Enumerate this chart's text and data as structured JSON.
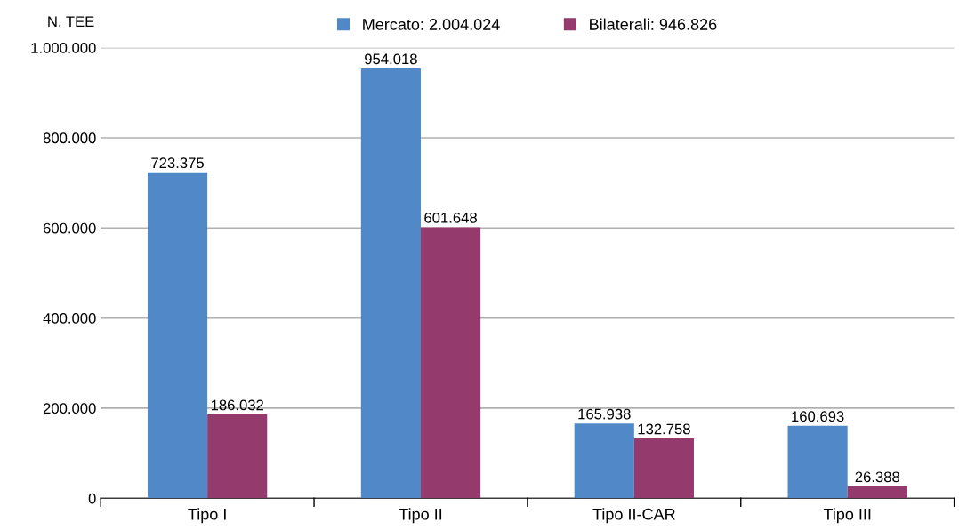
{
  "chart_data": {
    "type": "bar",
    "ylabel": "N. TEE",
    "categories": [
      "Tipo I",
      "Tipo II",
      "Tipo II-CAR",
      "Tipo III"
    ],
    "series": [
      {
        "name": "Mercato: 2.004.024",
        "color": "#5088c8",
        "values": [
          723375,
          954018,
          165938,
          160693
        ],
        "value_labels": [
          "723.375",
          "954.018",
          "165.938",
          "160.693"
        ]
      },
      {
        "name": "Bilaterali: 946.826",
        "color": "#953a6c",
        "values": [
          186032,
          601648,
          132758,
          26388
        ],
        "value_labels": [
          "186.032",
          "601.648",
          "132.758",
          "26.388"
        ]
      }
    ],
    "ylim": [
      0,
      1000000
    ],
    "yticks": [
      {
        "value": 0,
        "label": "0"
      },
      {
        "value": 200000,
        "label": "200.000"
      },
      {
        "value": 400000,
        "label": "400.000"
      },
      {
        "value": 600000,
        "label": "600.000"
      },
      {
        "value": 800000,
        "label": "800.000"
      },
      {
        "value": 1000000,
        "label": "1.000.000"
      }
    ],
    "grid": "y",
    "legend": "top"
  }
}
